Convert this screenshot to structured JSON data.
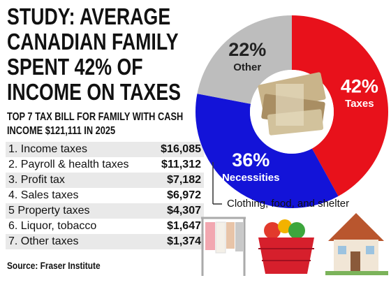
{
  "chart_data": {
    "type": "pie",
    "title": "STUDY: AVERAGE CANADIAN FAMILY SPENT 42% OF INCOME ON TAXES",
    "categories": [
      "Taxes",
      "Necessities",
      "Other"
    ],
    "values": [
      42,
      36,
      22
    ],
    "value_labels": [
      "42%",
      "36%",
      "22%"
    ],
    "colors": [
      "#e8111b",
      "#1313d8",
      "#bdbdbd"
    ],
    "label_colors": [
      "#ffffff",
      "#ffffff",
      "#222222"
    ],
    "donut": true,
    "annotation": "Clothing, food, and shelter"
  },
  "table": {
    "title": "TOP 7 TAX BILL FOR FAMILY WITH CASH INCOME $121,111 IN 2025",
    "rows": [
      [
        "1. Income taxes",
        "$16,085"
      ],
      [
        "2. Payroll & health taxes",
        "$11,312"
      ],
      [
        "3. Profit tax",
        "$7,182"
      ],
      [
        "4. Sales taxes",
        "$6,972"
      ],
      [
        "5 Property taxes",
        "$4,307"
      ],
      [
        "6. Liquor, tobacco",
        "$1,647"
      ],
      [
        "7. Other taxes",
        "$1,374"
      ]
    ]
  },
  "source": "Source: Fraser Institute"
}
